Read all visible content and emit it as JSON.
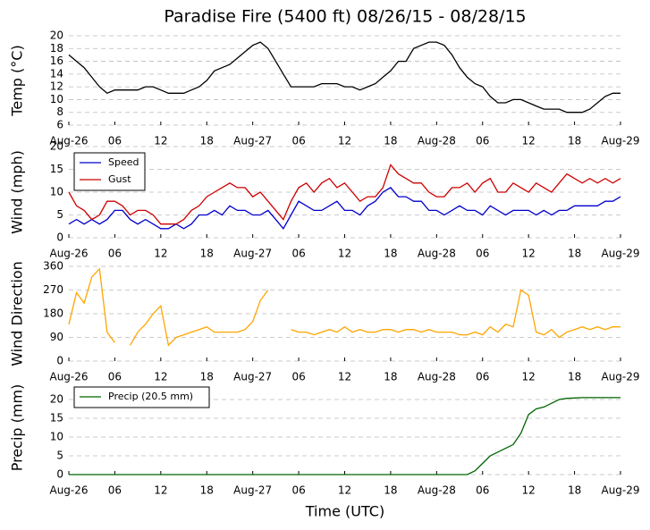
{
  "chart_data": [
    {
      "type": "line",
      "title": "Paradise Fire (5400 ft) 08/26/15 - 08/28/15",
      "y_label": "Temp (°C)",
      "x": [
        0,
        1,
        2,
        3,
        4,
        5,
        6,
        7,
        8,
        9,
        10,
        11,
        12,
        13,
        14,
        15,
        16,
        17,
        18,
        19,
        20,
        21,
        22,
        23,
        24,
        25,
        26,
        27,
        28,
        29,
        30,
        31,
        32,
        33,
        34,
        35,
        36,
        37,
        38,
        39,
        40,
        41,
        42,
        43,
        44,
        45,
        46,
        47,
        48,
        49,
        50,
        51,
        52,
        53,
        54,
        55,
        56,
        57,
        58,
        59,
        60,
        61,
        62,
        63,
        64,
        65,
        66,
        67,
        68,
        69,
        70,
        71,
        72
      ],
      "series": [
        {
          "name": "Temp",
          "color": "#000000",
          "values": [
            17,
            16,
            15,
            13.5,
            12,
            11,
            11.5,
            11.5,
            11.5,
            11.5,
            12,
            12,
            11.5,
            11,
            11,
            11,
            11.5,
            12,
            13,
            14.5,
            15,
            15.5,
            16.5,
            17.5,
            18.5,
            19,
            18,
            16,
            14,
            12,
            12,
            12,
            12,
            12.5,
            12.5,
            12.5,
            12,
            12,
            11.5,
            12,
            12.5,
            13.5,
            14.5,
            16,
            16,
            18,
            18.5,
            19,
            19,
            18.5,
            17,
            15,
            13.5,
            12.5,
            12,
            10.5,
            9.5,
            9.5,
            10,
            10,
            9.5,
            9,
            8.5,
            8.5,
            8.5,
            8,
            8,
            8,
            8.5,
            9.5,
            10.5,
            11,
            11
          ]
        }
      ],
      "xlim": [
        0,
        72
      ],
      "xticks": [
        {
          "value": 0,
          "label": "Aug-26"
        },
        {
          "value": 6,
          "label": "06"
        },
        {
          "value": 12,
          "label": "12"
        },
        {
          "value": 18,
          "label": "18"
        },
        {
          "value": 24,
          "label": "Aug-27"
        },
        {
          "value": 30,
          "label": "06"
        },
        {
          "value": 36,
          "label": "12"
        },
        {
          "value": 42,
          "label": "18"
        },
        {
          "value": 48,
          "label": "Aug-28"
        },
        {
          "value": 54,
          "label": "06"
        },
        {
          "value": 60,
          "label": "12"
        },
        {
          "value": 66,
          "label": "18"
        },
        {
          "value": 72,
          "label": "Aug-29"
        }
      ],
      "ylim": [
        6,
        20
      ],
      "yticks": [
        6,
        8,
        10,
        12,
        14,
        16,
        18,
        20
      ],
      "grid": true
    },
    {
      "type": "line",
      "y_label": "Wind (mph)",
      "legend": "upper left",
      "x": [
        0,
        1,
        2,
        3,
        4,
        5,
        6,
        7,
        8,
        9,
        10,
        11,
        12,
        13,
        14,
        15,
        16,
        17,
        18,
        19,
        20,
        21,
        22,
        23,
        24,
        25,
        26,
        27,
        28,
        29,
        30,
        31,
        32,
        33,
        34,
        35,
        36,
        37,
        38,
        39,
        40,
        41,
        42,
        43,
        44,
        45,
        46,
        47,
        48,
        49,
        50,
        51,
        52,
        53,
        54,
        55,
        56,
        57,
        58,
        59,
        60,
        61,
        62,
        63,
        64,
        65,
        66,
        67,
        68,
        69,
        70,
        71,
        72
      ],
      "series": [
        {
          "name": "Speed",
          "color": "#0000cc",
          "values": [
            3,
            4,
            3,
            4,
            3,
            4,
            6,
            6,
            4,
            3,
            4,
            3,
            2,
            2,
            3,
            2,
            3,
            5,
            5,
            6,
            5,
            7,
            6,
            6,
            5,
            5,
            6,
            4,
            2,
            5,
            8,
            7,
            6,
            6,
            7,
            8,
            6,
            6,
            5,
            7,
            8,
            10,
            11,
            9,
            9,
            8,
            8,
            6,
            6,
            5,
            6,
            7,
            6,
            6,
            5,
            7,
            6,
            5,
            6,
            6,
            6,
            5,
            6,
            5,
            6,
            6,
            7,
            7,
            7,
            7,
            8,
            8,
            9
          ]
        },
        {
          "name": "Gust",
          "color": "#cc0000",
          "values": [
            10,
            7,
            6,
            4,
            5,
            8,
            8,
            7,
            5,
            6,
            6,
            5,
            3,
            3,
            3,
            4,
            6,
            7,
            9,
            10,
            11,
            12,
            11,
            11,
            9,
            10,
            8,
            6,
            4,
            8,
            11,
            12,
            10,
            12,
            13,
            11,
            12,
            10,
            8,
            9,
            9,
            11,
            16,
            14,
            13,
            12,
            12,
            10,
            9,
            9,
            11,
            11,
            12,
            10,
            12,
            13,
            10,
            10,
            12,
            11,
            10,
            12,
            11,
            10,
            12,
            14,
            13,
            12,
            13,
            12,
            13,
            12,
            13
          ]
        }
      ],
      "xlim": [
        0,
        72
      ],
      "xticks": [
        {
          "value": 0,
          "label": "Aug-26"
        },
        {
          "value": 6,
          "label": "06"
        },
        {
          "value": 12,
          "label": "12"
        },
        {
          "value": 18,
          "label": "18"
        },
        {
          "value": 24,
          "label": "Aug-27"
        },
        {
          "value": 30,
          "label": "06"
        },
        {
          "value": 36,
          "label": "12"
        },
        {
          "value": 42,
          "label": "18"
        },
        {
          "value": 48,
          "label": "Aug-28"
        },
        {
          "value": 54,
          "label": "06"
        },
        {
          "value": 60,
          "label": "12"
        },
        {
          "value": 66,
          "label": "18"
        },
        {
          "value": 72,
          "label": "Aug-29"
        }
      ],
      "ylim": [
        0,
        20
      ],
      "yticks": [
        0,
        5,
        10,
        15,
        20
      ],
      "grid": true
    },
    {
      "type": "line",
      "y_label": "Wind Direction",
      "x": [
        0,
        1,
        2,
        3,
        4,
        5,
        6,
        7,
        8,
        9,
        10,
        11,
        12,
        13,
        14,
        15,
        16,
        17,
        18,
        19,
        20,
        21,
        22,
        23,
        24,
        25,
        26,
        27,
        28,
        29,
        30,
        31,
        32,
        33,
        34,
        35,
        36,
        37,
        38,
        39,
        40,
        41,
        42,
        43,
        44,
        45,
        46,
        47,
        48,
        49,
        50,
        51,
        52,
        53,
        54,
        55,
        56,
        57,
        58,
        59,
        60,
        61,
        62,
        63,
        64,
        65,
        66,
        67,
        68,
        69,
        70,
        71,
        72
      ],
      "series": [
        {
          "name": "Direction",
          "color": "#ffa500",
          "values": [
            140,
            260,
            220,
            320,
            350,
            110,
            70,
            null,
            60,
            110,
            140,
            180,
            210,
            60,
            90,
            100,
            110,
            120,
            130,
            110,
            110,
            110,
            110,
            120,
            150,
            230,
            270,
            null,
            null,
            120,
            110,
            110,
            100,
            110,
            120,
            110,
            130,
            110,
            120,
            110,
            110,
            120,
            120,
            110,
            120,
            120,
            110,
            120,
            110,
            110,
            110,
            100,
            100,
            110,
            100,
            130,
            110,
            140,
            130,
            270,
            250,
            110,
            100,
            120,
            90,
            110,
            120,
            130,
            120,
            130,
            120,
            130,
            130
          ]
        }
      ],
      "xlim": [
        0,
        72
      ],
      "xticks": [
        {
          "value": 0,
          "label": "Aug-26"
        },
        {
          "value": 6,
          "label": "06"
        },
        {
          "value": 12,
          "label": "12"
        },
        {
          "value": 18,
          "label": "18"
        },
        {
          "value": 24,
          "label": "Aug-27"
        },
        {
          "value": 30,
          "label": "06"
        },
        {
          "value": 36,
          "label": "12"
        },
        {
          "value": 42,
          "label": "18"
        },
        {
          "value": 48,
          "label": "Aug-28"
        },
        {
          "value": 54,
          "label": "06"
        },
        {
          "value": 60,
          "label": "12"
        },
        {
          "value": 66,
          "label": "18"
        },
        {
          "value": 72,
          "label": "Aug-29"
        }
      ],
      "ylim": [
        0,
        360
      ],
      "yticks": [
        0,
        90,
        180,
        270,
        360
      ],
      "grid": true
    },
    {
      "type": "line",
      "y_label": "Precip (mm)",
      "x_label": "Time (UTC)",
      "legend": "upper left",
      "x": [
        0,
        1,
        2,
        3,
        4,
        5,
        6,
        7,
        8,
        9,
        10,
        11,
        12,
        13,
        14,
        15,
        16,
        17,
        18,
        19,
        20,
        21,
        22,
        23,
        24,
        25,
        26,
        27,
        28,
        29,
        30,
        31,
        32,
        33,
        34,
        35,
        36,
        37,
        38,
        39,
        40,
        41,
        42,
        43,
        44,
        45,
        46,
        47,
        48,
        49,
        50,
        51,
        52,
        53,
        54,
        55,
        56,
        57,
        58,
        59,
        60,
        61,
        62,
        63,
        64,
        65,
        66,
        67,
        68,
        69,
        70,
        71,
        72
      ],
      "series": [
        {
          "name": "Precip (20.5 mm)",
          "color": "#006400",
          "values": [
            0,
            0,
            0,
            0,
            0,
            0,
            0,
            0,
            0,
            0,
            0,
            0,
            0,
            0,
            0,
            0,
            0,
            0,
            0,
            0,
            0,
            0,
            0,
            0,
            0,
            0,
            0,
            0,
            0,
            0,
            0,
            0,
            0,
            0,
            0,
            0,
            0,
            0,
            0,
            0,
            0,
            0,
            0,
            0,
            0,
            0,
            0,
            0,
            0,
            0,
            0,
            0,
            0,
            1,
            3,
            5,
            6,
            7,
            8,
            11,
            16,
            17.5,
            18,
            19,
            20,
            20.3,
            20.4,
            20.5,
            20.5,
            20.5,
            20.5,
            20.5,
            20.5
          ]
        }
      ],
      "xlim": [
        0,
        72
      ],
      "xticks": [
        {
          "value": 0,
          "label": "Aug-26"
        },
        {
          "value": 6,
          "label": "06"
        },
        {
          "value": 12,
          "label": "12"
        },
        {
          "value": 18,
          "label": "18"
        },
        {
          "value": 24,
          "label": "Aug-27"
        },
        {
          "value": 30,
          "label": "06"
        },
        {
          "value": 36,
          "label": "12"
        },
        {
          "value": 42,
          "label": "18"
        },
        {
          "value": 48,
          "label": "Aug-28"
        },
        {
          "value": 54,
          "label": "06"
        },
        {
          "value": 60,
          "label": "12"
        },
        {
          "value": 66,
          "label": "18"
        },
        {
          "value": 72,
          "label": "Aug-29"
        }
      ],
      "ylim": [
        0,
        25
      ],
      "yticks": [
        0,
        5,
        10,
        15,
        20
      ],
      "grid": true
    }
  ]
}
